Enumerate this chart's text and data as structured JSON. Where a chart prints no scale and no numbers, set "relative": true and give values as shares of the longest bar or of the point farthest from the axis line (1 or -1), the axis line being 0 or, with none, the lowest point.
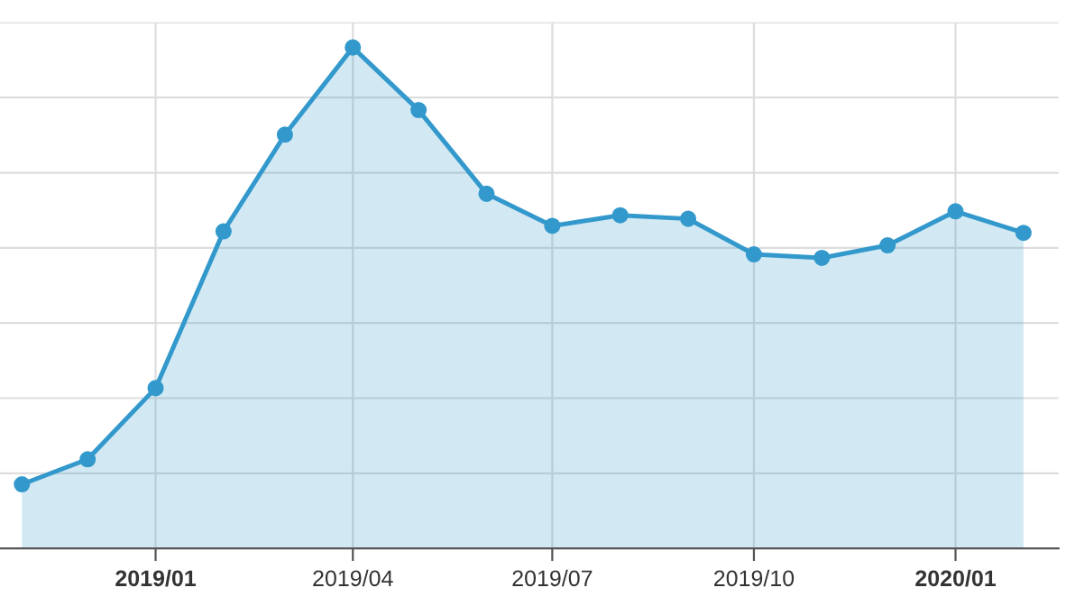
{
  "chart_data": {
    "type": "area",
    "relative": true,
    "x": [
      "2018-11-01",
      "2018-12-01",
      "2019-01-01",
      "2019-02-01",
      "2019-03-01",
      "2019-04-01",
      "2019-05-01",
      "2019-06-01",
      "2019-07-01",
      "2019-08-01",
      "2019-09-01",
      "2019-10-01",
      "2019-11-01",
      "2019-12-01",
      "2020-01-01",
      "2020-02-01"
    ],
    "series": [
      {
        "color": "#3399cc",
        "values": [
          0.128,
          0.178,
          0.32,
          0.633,
          0.826,
          1,
          0.875,
          0.708,
          0.644,
          0.665,
          0.658,
          0.587,
          0.58,
          0.605,
          0.673,
          0.63
        ]
      }
    ],
    "xlim": [
      "2018-10-22",
      "2020-02-17"
    ],
    "xticks": [
      {
        "value": "2019-01-01",
        "label": "2019/01"
      },
      {
        "value": "2019-04-01",
        "label": "2019/04"
      },
      {
        "value": "2019-07-01",
        "label": "2019/07"
      },
      {
        "value": "2019-10-01",
        "label": "2019/10"
      },
      {
        "value": "2020-01-01",
        "label": "2020/01"
      }
    ],
    "grid": true,
    "marker": "circle",
    "line_style": "solid",
    "legend": false
  }
}
